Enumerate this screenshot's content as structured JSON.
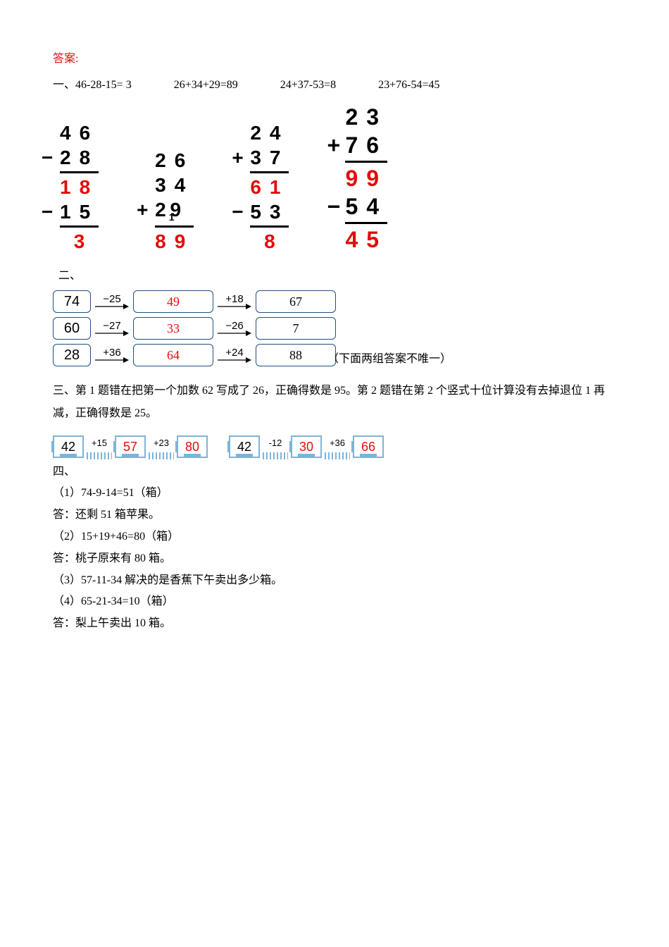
{
  "header": "答案:",
  "section1": {
    "label": "一、",
    "eq1": "46-28-15= 3",
    "eq2": "26+34+29=89",
    "eq3": "24+37-53=8",
    "eq4": "23+76-54=45",
    "verticals": [
      {
        "rows": [
          {
            "op": "",
            "digits": "46",
            "color": "#000"
          },
          {
            "op": "−",
            "digits": "28",
            "color": "#000",
            "rule": true
          },
          {
            "op": "",
            "digits": "18",
            "color": "#e30b0b"
          },
          {
            "op": "−",
            "digits": "15",
            "color": "#000",
            "rule": true
          },
          {
            "op": "",
            "digits": "3",
            "color": "#e30b0b",
            "pad": " "
          }
        ],
        "fontsize": 28
      },
      {
        "rows": [
          {
            "op": "",
            "digits": "26",
            "color": "#000"
          },
          {
            "op": "",
            "digits": "34",
            "color": "#000"
          },
          {
            "op": "+",
            "digits": "2₁9",
            "color": "#000",
            "rule": true,
            "sub": true
          },
          {
            "op": "",
            "digits": "89",
            "color": "#e30b0b"
          }
        ],
        "fontsize": 28
      },
      {
        "rows": [
          {
            "op": "",
            "digits": "24",
            "color": "#000"
          },
          {
            "op": "+",
            "digits": "37",
            "color": "#000",
            "rule": true
          },
          {
            "op": "",
            "digits": "61",
            "color": "#e30b0b"
          },
          {
            "op": "−",
            "digits": "53",
            "color": "#000",
            "rule": true
          },
          {
            "op": "",
            "digits": "8",
            "color": "#e30b0b",
            "pad": " "
          }
        ],
        "fontsize": 28
      },
      {
        "rows": [
          {
            "op": "",
            "digits": "23",
            "color": "#000"
          },
          {
            "op": "+",
            "digits": "76",
            "color": "#000",
            "rule": true
          },
          {
            "op": "",
            "digits": "99",
            "color": "#e30b0b"
          },
          {
            "op": "−",
            "digits": "54",
            "color": "#000",
            "rule": true
          },
          {
            "op": "",
            "digits": "45",
            "color": "#e30b0b"
          }
        ],
        "fontsize": 32
      }
    ]
  },
  "section2": {
    "label": "二、",
    "lines": [
      {
        "start": "74",
        "a1": "−25",
        "m": "49",
        "a2": "+18",
        "end": "67",
        "mcolor": "#e30b0b",
        "ecolor": "#000"
      },
      {
        "start": "60",
        "a1": "−27",
        "m": "33",
        "a2": "−26",
        "end": "7",
        "mcolor": "#e30b0b",
        "ecolor": "#000"
      },
      {
        "start": "28",
        "a1": "+36",
        "m": "64",
        "a2": "+24",
        "end": "88",
        "mcolor": "#e30b0b",
        "ecolor": "#000"
      }
    ],
    "note": "（下面两组答案不唯一）",
    "box_border": "#205080",
    "arrow_color": "#000"
  },
  "section3": {
    "text": "三、第 1 题错在把第一个加数 62 写成了 26，正确得数是 95。第 2 题错在第 2 个竖式十位计算没有去掉退位 1 再减，正确得数是 25。"
  },
  "chains": [
    {
      "ops": [
        "+15",
        "+23"
      ],
      "vals": [
        "42",
        "57",
        "80"
      ],
      "colors": [
        "#000",
        "#e30b0b",
        "#e30b0b"
      ]
    },
    {
      "ops": [
        "-12",
        "+36"
      ],
      "vals": [
        "42",
        "30",
        "66"
      ],
      "colors": [
        "#000",
        "#e30b0b",
        "#e30b0b"
      ]
    }
  ],
  "section4": {
    "label": "四、",
    "items": [
      "（1）74-9-14=51（箱）",
      "答：还剩 51 箱苹果。",
      "（2）15+19+46=80（箱）",
      "答：桃子原来有 80 箱。",
      "（3）57-11-34 解决的是香蕉下午卖出多少箱。",
      "（4）65-21-34=10（箱）",
      "答：梨上午卖出 10 箱。"
    ]
  },
  "style": {
    "red": "#e30b0b",
    "chain_border": "#7fb3d5",
    "body_fontsize": 16
  }
}
